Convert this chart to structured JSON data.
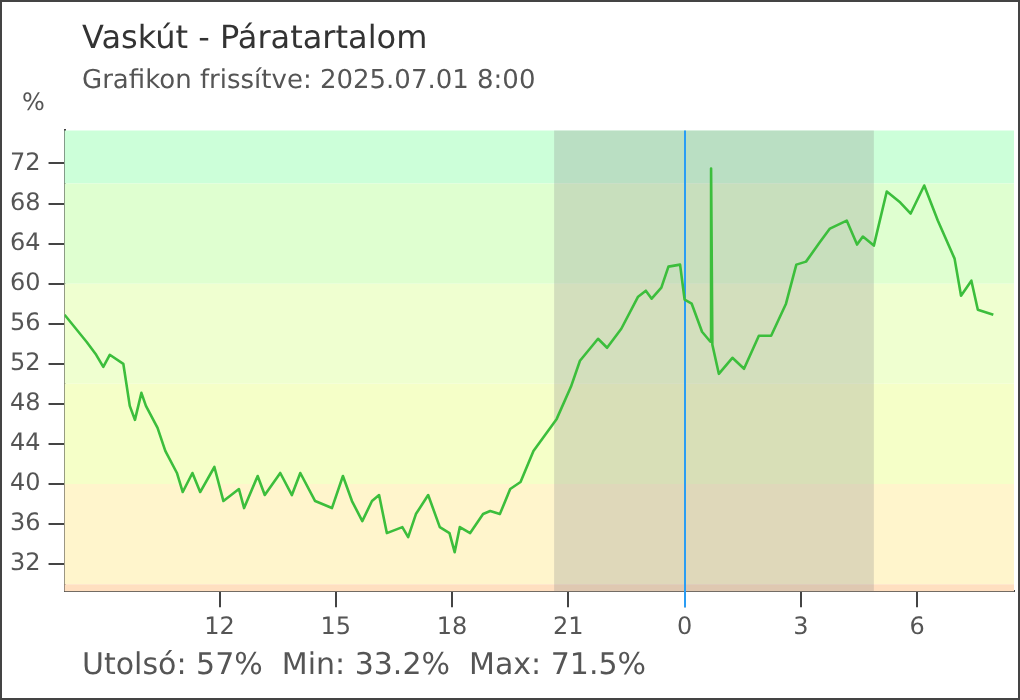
{
  "chart_data": {
    "type": "line",
    "title": "Vaskút - Páratartalom",
    "subtitle": "Grafikon frissítve: 2025.07.01 8:00",
    "ylabel": "%",
    "annotations": [
      "Utolsó: 57%  Min: 33.2%  Max: 71.5%"
    ],
    "xlim": [
      "2025-06-30T08:00",
      "2025-07-01T08:30"
    ],
    "xticks": [
      {
        "value": "2025-06-30T12:00",
        "label": "12"
      },
      {
        "value": "2025-06-30T15:00",
        "label": "15"
      },
      {
        "value": "2025-06-30T18:00",
        "label": "18"
      },
      {
        "value": "2025-06-30T21:00",
        "label": "21"
      },
      {
        "value": "2025-07-01T00:00",
        "label": "0"
      },
      {
        "value": "2025-07-01T03:00",
        "label": "3"
      },
      {
        "value": "2025-07-01T06:00",
        "label": "6"
      }
    ],
    "ylim": [
      29.3,
      75.3
    ],
    "yticks": [
      32,
      36,
      40,
      44,
      48,
      52,
      56,
      60,
      64,
      68,
      72
    ],
    "grid": false,
    "legend": false,
    "marker": "none",
    "line_style": "solid",
    "bands": [
      {
        "axis": "y",
        "from": 70,
        "to": 75.3,
        "color": "#ccffd9"
      },
      {
        "axis": "y",
        "from": 60,
        "to": 70,
        "color": "#dfffd0"
      },
      {
        "axis": "y",
        "from": 50,
        "to": 60,
        "color": "#efffd0"
      },
      {
        "axis": "y",
        "from": 40,
        "to": 50,
        "color": "#f5ffc8"
      },
      {
        "axis": "y",
        "from": 30,
        "to": 40,
        "color": "#fff5cc"
      },
      {
        "axis": "y",
        "from": 29.3,
        "to": 30,
        "color": "#ffdfc0"
      },
      {
        "axis": "x",
        "from": "2025-06-30T20:38",
        "to": "2025-07-01T04:53",
        "color": "#8c8c8c"
      }
    ],
    "ref_lines": [
      {
        "axis": "x",
        "value": "2025-07-01T00:00",
        "color": "#2a9df4"
      }
    ],
    "series": [
      {
        "color": "#3cbe3c",
        "x": [
          "2025-06-30T08:00",
          "2025-06-30T08:34",
          "2025-06-30T08:49",
          "2025-06-30T09:00",
          "2025-06-30T09:10",
          "2025-06-30T09:31",
          "2025-06-30T09:41",
          "2025-06-30T09:49",
          "2025-06-30T09:59",
          "2025-06-30T10:06",
          "2025-06-30T10:24",
          "2025-06-30T10:36",
          "2025-06-30T10:54",
          "2025-06-30T11:03",
          "2025-06-30T11:18",
          "2025-06-30T11:30",
          "2025-06-30T11:52",
          "2025-06-30T12:06",
          "2025-06-30T12:30",
          "2025-06-30T12:38",
          "2025-06-30T12:59",
          "2025-06-30T13:10",
          "2025-06-30T13:34",
          "2025-06-30T13:52",
          "2025-06-30T14:05",
          "2025-06-30T14:28",
          "2025-06-30T14:54",
          "2025-06-30T15:11",
          "2025-06-30T15:25",
          "2025-06-30T15:41",
          "2025-06-30T15:56",
          "2025-06-30T16:07",
          "2025-06-30T16:19",
          "2025-06-30T16:43",
          "2025-06-30T16:52",
          "2025-06-30T17:04",
          "2025-06-30T17:23",
          "2025-06-30T17:41",
          "2025-06-30T17:56",
          "2025-06-30T18:04",
          "2025-06-30T18:12",
          "2025-06-30T18:28",
          "2025-06-30T18:48",
          "2025-06-30T18:59",
          "2025-06-30T19:14",
          "2025-06-30T19:30",
          "2025-06-30T19:46",
          "2025-06-30T20:06",
          "2025-06-30T20:42",
          "2025-06-30T21:04",
          "2025-06-30T21:18",
          "2025-06-30T21:46",
          "2025-06-30T22:00",
          "2025-06-30T22:22",
          "2025-06-30T22:48",
          "2025-06-30T23:00",
          "2025-06-30T23:09",
          "2025-06-30T23:24",
          "2025-06-30T23:35",
          "2025-06-30T23:53",
          "2025-07-01T00:00",
          "2025-07-01T00:11",
          "2025-07-01T00:27",
          "2025-07-01T00:40",
          "2025-07-01T00:41",
          "2025-07-01T00:43",
          "2025-07-01T00:53",
          "2025-07-01T01:14",
          "2025-07-01T01:32",
          "2025-07-01T01:55",
          "2025-07-01T02:14",
          "2025-07-01T02:37",
          "2025-07-01T02:53",
          "2025-07-01T03:08",
          "2025-07-01T03:29",
          "2025-07-01T03:45",
          "2025-07-01T04:11",
          "2025-07-01T04:27",
          "2025-07-01T04:36",
          "2025-07-01T04:53",
          "2025-07-01T05:13",
          "2025-07-01T05:34",
          "2025-07-01T05:50",
          "2025-07-01T06:11",
          "2025-07-01T06:32",
          "2025-07-01T06:58",
          "2025-07-01T07:08",
          "2025-07-01T07:24",
          "2025-07-01T07:34",
          "2025-07-01T07:58"
        ],
        "values": [
          56.9,
          54.2,
          52.9,
          51.7,
          52.9,
          52.0,
          47.8,
          46.4,
          49.1,
          47.8,
          45.6,
          43.3,
          41.1,
          39.2,
          41.1,
          39.2,
          41.7,
          38.3,
          39.5,
          37.6,
          40.8,
          38.9,
          41.1,
          38.9,
          41.1,
          38.3,
          37.6,
          40.8,
          38.3,
          36.3,
          38.3,
          38.9,
          35.1,
          35.7,
          34.7,
          37.0,
          38.9,
          35.7,
          35.1,
          33.2,
          35.7,
          35.1,
          37.0,
          37.3,
          37.0,
          39.5,
          40.2,
          43.3,
          46.5,
          49.7,
          52.3,
          54.5,
          53.6,
          55.5,
          58.7,
          59.3,
          58.5,
          59.6,
          61.7,
          61.9,
          58.4,
          58.0,
          55.2,
          54.2,
          71.5,
          53.9,
          51.0,
          52.6,
          51.5,
          54.8,
          54.8,
          58.0,
          61.9,
          62.2,
          64.1,
          65.5,
          66.3,
          63.9,
          64.7,
          63.8,
          69.2,
          68.1,
          67.0,
          69.8,
          66.3,
          62.5,
          58.8,
          60.3,
          57.4,
          56.9
        ]
      }
    ]
  }
}
